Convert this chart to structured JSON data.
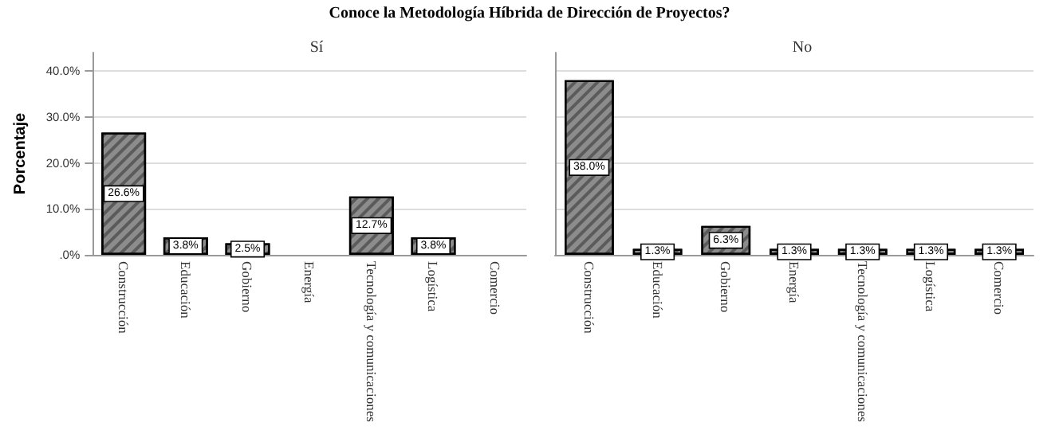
{
  "chart_data": [
    {
      "type": "bar",
      "title": "Conoce la Metodología Híbrida de Dirección de Proyectos?",
      "subtitle": "Sí",
      "ylabel": "Porcentaje",
      "categories": [
        "Construcción",
        "Educación",
        "Gobierno",
        "Energía",
        "Tecnología y comunicaciones",
        "Logística",
        "Comercio"
      ],
      "values": [
        26.6,
        3.8,
        2.5,
        null,
        12.7,
        3.8,
        null
      ],
      "value_labels": [
        "26.6%",
        "3.8%",
        "2.5%",
        null,
        "12.7%",
        "3.8%",
        null
      ],
      "color": "#8c8c8c",
      "ylim": [
        0,
        44
      ],
      "yticks": [
        {
          "value": 0,
          "label": ".0%"
        },
        {
          "value": 10,
          "label": "10.0%"
        },
        {
          "value": 20,
          "label": "20.0%"
        },
        {
          "value": 30,
          "label": "30.0%"
        },
        {
          "value": 40,
          "label": "40.0%"
        }
      ],
      "grid": "y"
    },
    {
      "type": "bar",
      "subtitle": "No",
      "categories": [
        "Construcción",
        "Educación",
        "Gobierno",
        "Energía",
        "Tecnología y comunicaciones",
        "Logística",
        "Comercio"
      ],
      "values": [
        38.0,
        1.3,
        6.3,
        1.3,
        1.3,
        1.3,
        1.3
      ],
      "value_labels": [
        "38.0%",
        "1.3%",
        "6.3%",
        "1.3%",
        "1.3%",
        "1.3%",
        "1.3%"
      ],
      "color": "#8c8c8c",
      "ylim": [
        0,
        44
      ],
      "yticks": [
        0,
        10,
        20,
        30,
        40
      ],
      "grid": "y",
      "tick_labels": "x"
    }
  ]
}
